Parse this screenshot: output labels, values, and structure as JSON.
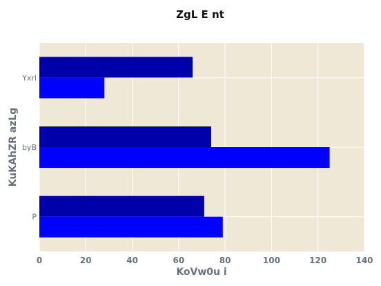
{
  "chart_data": {
    "type": "bar",
    "orientation": "horizontal",
    "title": "ZgL E nt",
    "xlabel": "KoVw0u  i",
    "ylabel": "KuKAhZR azLg",
    "categories": [
      "P",
      "byB",
      "Yxrl"
    ],
    "series": [
      {
        "color": "#0000ff",
        "values": [
          79,
          125,
          28
        ]
      },
      {
        "color": "#0000aa",
        "values": [
          71,
          74,
          66
        ]
      }
    ],
    "xlim": [
      0,
      140
    ],
    "xticks": [
      0,
      20,
      40,
      60,
      80,
      100,
      120,
      140
    ],
    "grid": true,
    "legend": "none",
    "background": "#efe8d7"
  }
}
